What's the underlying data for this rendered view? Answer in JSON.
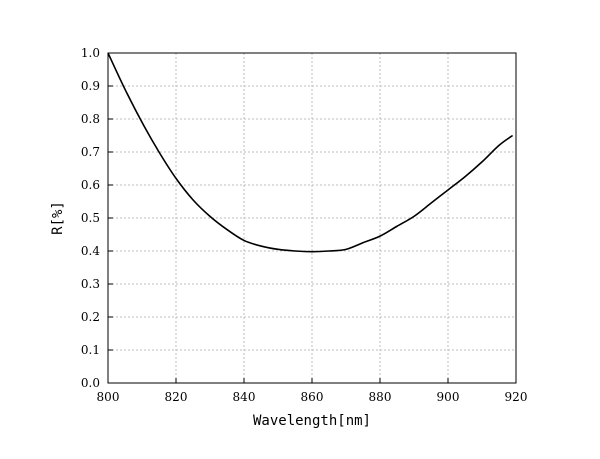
{
  "chart_data": {
    "type": "line",
    "xlabel": "Wavelength[nm]",
    "ylabel": "R[%]",
    "xlim": [
      800,
      920
    ],
    "ylim": [
      0.0,
      1.0
    ],
    "x_ticks": [
      "800",
      "820",
      "840",
      "860",
      "880",
      "900",
      "920"
    ],
    "y_ticks": [
      "0.0",
      "0.1",
      "0.2",
      "0.3",
      "0.4",
      "0.5",
      "0.6",
      "0.7",
      "0.8",
      "0.9",
      "1.0"
    ],
    "grid": true,
    "series": [
      {
        "color": "#000000",
        "x": [
          800,
          805,
          810,
          815,
          820,
          825,
          830,
          835,
          840,
          845,
          850,
          855,
          860,
          865,
          870,
          875,
          880,
          885,
          890,
          895,
          900,
          905,
          910,
          915,
          919
        ],
        "y": [
          1.0,
          0.89,
          0.79,
          0.7,
          0.62,
          0.555,
          0.505,
          0.465,
          0.432,
          0.415,
          0.405,
          0.4,
          0.398,
          0.4,
          0.405,
          0.425,
          0.445,
          0.475,
          0.505,
          0.545,
          0.585,
          0.625,
          0.67,
          0.72,
          0.75
        ]
      }
    ]
  }
}
